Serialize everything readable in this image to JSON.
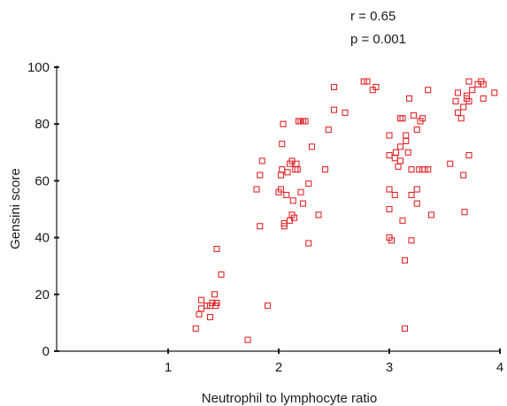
{
  "chart_data": {
    "type": "scatter",
    "title": "",
    "xlabel": "Neutrophil to lymphocyte ratio",
    "ylabel": "Gensini score",
    "xlim": [
      0,
      4
    ],
    "ylim": [
      0,
      100
    ],
    "x_ticks": [
      "1",
      "2",
      "3",
      "4"
    ],
    "y_ticks": [
      "0",
      "20",
      "40",
      "60",
      "80",
      "100"
    ],
    "x_tick_values": [
      1,
      2,
      3,
      4
    ],
    "y_tick_values": [
      0,
      20,
      40,
      60,
      80,
      100
    ],
    "grid": false,
    "legend": "none",
    "marker": "open-square",
    "marker_color": "#e0262a",
    "annotations": {
      "r_text": "r = 0.65",
      "p_text": "p = 0.001"
    },
    "series": [
      {
        "points": [
          [
            1.25,
            8
          ],
          [
            1.28,
            13
          ],
          [
            1.3,
            15
          ],
          [
            1.3,
            18
          ],
          [
            1.35,
            16
          ],
          [
            1.38,
            16
          ],
          [
            1.38,
            12
          ],
          [
            1.4,
            17
          ],
          [
            1.42,
            20
          ],
          [
            1.44,
            17
          ],
          [
            1.43,
            16
          ],
          [
            1.44,
            36
          ],
          [
            1.48,
            27
          ],
          [
            1.72,
            4
          ],
          [
            1.9,
            16
          ],
          [
            1.8,
            57
          ],
          [
            1.83,
            62
          ],
          [
            1.85,
            67
          ],
          [
            1.83,
            44
          ],
          [
            2.0,
            56
          ],
          [
            2.02,
            57
          ],
          [
            2.02,
            62
          ],
          [
            2.03,
            64
          ],
          [
            2.03,
            73
          ],
          [
            2.04,
            80
          ],
          [
            2.05,
            44
          ],
          [
            2.05,
            45
          ],
          [
            2.07,
            55
          ],
          [
            2.08,
            63
          ],
          [
            2.1,
            66
          ],
          [
            2.12,
            67
          ],
          [
            2.1,
            46
          ],
          [
            2.12,
            48
          ],
          [
            2.14,
            47
          ],
          [
            2.13,
            53
          ],
          [
            2.15,
            64
          ],
          [
            2.16,
            66
          ],
          [
            2.17,
            64
          ],
          [
            2.18,
            81
          ],
          [
            2.2,
            81
          ],
          [
            2.22,
            81
          ],
          [
            2.24,
            81
          ],
          [
            2.2,
            56
          ],
          [
            2.22,
            52
          ],
          [
            2.27,
            59
          ],
          [
            2.27,
            38
          ],
          [
            2.3,
            72
          ],
          [
            2.36,
            48
          ],
          [
            2.42,
            64
          ],
          [
            2.45,
            78
          ],
          [
            2.5,
            93
          ],
          [
            2.5,
            85
          ],
          [
            2.6,
            84
          ],
          [
            2.77,
            95
          ],
          [
            2.8,
            95
          ],
          [
            2.85,
            92
          ],
          [
            2.88,
            93
          ],
          [
            3.0,
            76
          ],
          [
            3.0,
            69
          ],
          [
            3.0,
            57
          ],
          [
            3.0,
            50
          ],
          [
            3.0,
            40
          ],
          [
            3.02,
            39
          ],
          [
            3.05,
            68
          ],
          [
            3.05,
            55
          ],
          [
            3.06,
            70
          ],
          [
            3.08,
            65
          ],
          [
            3.1,
            67
          ],
          [
            3.1,
            72
          ],
          [
            3.1,
            82
          ],
          [
            3.12,
            82
          ],
          [
            3.12,
            46
          ],
          [
            3.14,
            32
          ],
          [
            3.14,
            8
          ],
          [
            3.15,
            76
          ],
          [
            3.15,
            74
          ],
          [
            3.17,
            70
          ],
          [
            3.18,
            89
          ],
          [
            3.2,
            64
          ],
          [
            3.2,
            55
          ],
          [
            3.2,
            39
          ],
          [
            3.22,
            83
          ],
          [
            3.25,
            78
          ],
          [
            3.25,
            57
          ],
          [
            3.25,
            52
          ],
          [
            3.27,
            64
          ],
          [
            3.28,
            81
          ],
          [
            3.3,
            82
          ],
          [
            3.3,
            64
          ],
          [
            3.32,
            64
          ],
          [
            3.35,
            64
          ],
          [
            3.35,
            92
          ],
          [
            3.38,
            48
          ],
          [
            3.55,
            66
          ],
          [
            3.6,
            88
          ],
          [
            3.62,
            84
          ],
          [
            3.62,
            91
          ],
          [
            3.65,
            82
          ],
          [
            3.67,
            86
          ],
          [
            3.67,
            62
          ],
          [
            3.68,
            49
          ],
          [
            3.7,
            90
          ],
          [
            3.7,
            89
          ],
          [
            3.72,
            88
          ],
          [
            3.72,
            95
          ],
          [
            3.72,
            69
          ],
          [
            3.75,
            92
          ],
          [
            3.8,
            94
          ],
          [
            3.83,
            95
          ],
          [
            3.85,
            89
          ],
          [
            3.85,
            94
          ],
          [
            3.95,
            91
          ]
        ]
      }
    ]
  }
}
